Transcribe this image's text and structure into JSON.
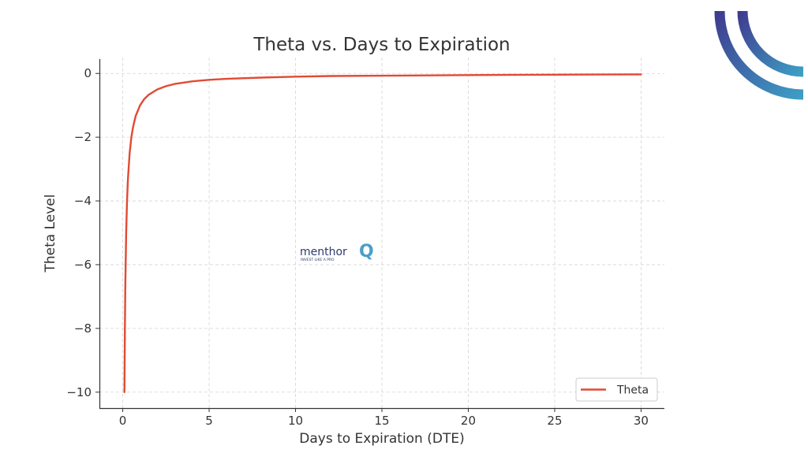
{
  "chart_data": {
    "type": "line",
    "title": "Theta vs. Days to Expiration",
    "xlabel": "Days to Expiration (DTE)",
    "ylabel": "Theta Level",
    "xlim": [
      -1.35,
      31.35
    ],
    "ylim": [
      -10.5,
      0.5
    ],
    "xticks": [
      0,
      5,
      10,
      15,
      20,
      25,
      30
    ],
    "xtick_labels": [
      "0",
      "5",
      "10",
      "15",
      "20",
      "25",
      "30"
    ],
    "yticks": [
      0,
      -2,
      -4,
      -6,
      -8,
      -10
    ],
    "ytick_labels": [
      "0",
      "−2",
      "−4",
      "−6",
      "−8",
      "−10"
    ],
    "grid": true,
    "legend_position": "lower-right",
    "series": [
      {
        "name": "Theta",
        "color": "#e24a33",
        "x": [
          0.1,
          0.125,
          0.15,
          0.2,
          0.25,
          0.3,
          0.4,
          0.5,
          0.6,
          0.75,
          1,
          1.25,
          1.5,
          2,
          2.5,
          3,
          4,
          5,
          6,
          8,
          10,
          12,
          15,
          20,
          25,
          30
        ],
        "y": [
          -10,
          -8,
          -6.67,
          -5,
          -4,
          -3.33,
          -2.5,
          -2,
          -1.67,
          -1.33,
          -1,
          -0.8,
          -0.67,
          -0.5,
          -0.4,
          -0.33,
          -0.25,
          -0.2,
          -0.17,
          -0.13,
          -0.1,
          -0.08,
          -0.07,
          -0.05,
          -0.04,
          -0.03
        ]
      }
    ]
  },
  "watermark": {
    "brand": "menthor",
    "mark": "Q",
    "tagline": "INVEST LIKE A PRO",
    "colors": {
      "text": "#2e3a6b",
      "mark": "#4a9fc8"
    }
  },
  "corner_logo": {
    "icon": "concentric-arcs-logo",
    "colors": {
      "start": "#3f3c8f",
      "end": "#3d9ec5"
    }
  }
}
